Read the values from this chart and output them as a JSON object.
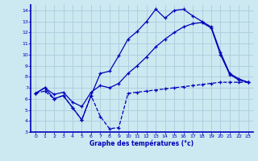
{
  "xlabel": "Graphe des températures (°c)",
  "xlim": [
    -0.5,
    23.5
  ],
  "ylim": [
    3,
    14.5
  ],
  "xticks": [
    0,
    1,
    2,
    3,
    4,
    5,
    6,
    7,
    8,
    9,
    10,
    11,
    12,
    13,
    14,
    15,
    16,
    17,
    18,
    19,
    20,
    21,
    22,
    23
  ],
  "yticks": [
    3,
    4,
    5,
    6,
    7,
    8,
    9,
    10,
    11,
    12,
    13,
    14
  ],
  "bg_color": "#cce8f0",
  "line_color": "#0000bb",
  "grid_color": "#aaccdd",
  "line_min_x": [
    0,
    1,
    2,
    3,
    4,
    5,
    6,
    7,
    8,
    9,
    10,
    11,
    12,
    13,
    14,
    15,
    16,
    17,
    18,
    19,
    20,
    21,
    22,
    23
  ],
  "line_min_y": [
    6.5,
    6.7,
    6.0,
    6.3,
    5.2,
    4.1,
    6.3,
    4.4,
    3.3,
    3.4,
    6.5,
    6.6,
    6.7,
    6.8,
    6.9,
    7.0,
    7.1,
    7.2,
    7.3,
    7.4,
    7.5,
    7.5,
    7.5,
    7.5
  ],
  "line_max_x": [
    0,
    1,
    2,
    3,
    4,
    5,
    6,
    7,
    8,
    9,
    10,
    11,
    12,
    13,
    14,
    15,
    16,
    17,
    18,
    19,
    20,
    21,
    22,
    23
  ],
  "line_max_y": [
    6.5,
    7.0,
    6.0,
    6.3,
    5.2,
    4.1,
    6.3,
    8.3,
    8.5,
    9.9,
    11.4,
    12.1,
    13.0,
    14.1,
    13.3,
    14.0,
    14.1,
    13.5,
    13.0,
    12.5,
    10.2,
    8.3,
    7.8,
    7.5
  ],
  "line_avg_x": [
    0,
    1,
    2,
    3,
    4,
    5,
    6,
    7,
    8,
    9,
    10,
    11,
    12,
    13,
    14,
    15,
    16,
    17,
    18,
    19,
    20,
    21,
    22,
    23
  ],
  "line_avg_y": [
    6.5,
    7.0,
    6.4,
    6.6,
    5.7,
    5.3,
    6.6,
    7.2,
    7.0,
    7.4,
    8.3,
    9.0,
    9.8,
    10.7,
    11.4,
    12.0,
    12.5,
    12.8,
    12.9,
    12.4,
    10.0,
    8.2,
    7.7,
    7.5
  ]
}
